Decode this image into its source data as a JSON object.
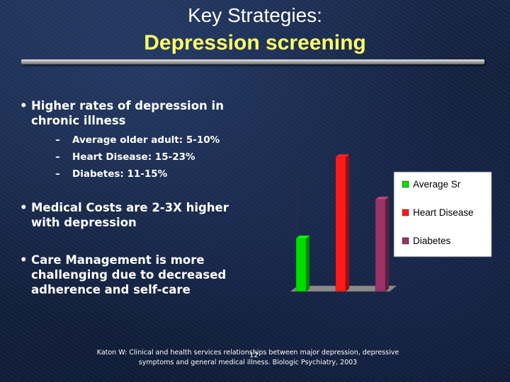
{
  "slide": {
    "title_line1": "Key Strategies:",
    "title_line2": "Depression screening",
    "bullets": [
      {
        "text": "Higher rates of depression in chronic illness"
      },
      {
        "text": "Medical Costs are 2-3X higher with depression"
      },
      {
        "text": "Care Management is more challenging due to decreased adherence and self-care"
      }
    ],
    "sub_bullets": [
      "Average older adult: 5-10%",
      "Heart Disease: 15-23%",
      "Diabetes: 11-15%"
    ],
    "citation_line1": "Katon W: Clinical and health services relationships between major depression, depressive",
    "citation_line2": "symptoms and general medical illness. Biologic Psychiatry, 2003",
    "slide_number": "12"
  },
  "chart_data": {
    "type": "bar",
    "categories": [
      "Average Sr",
      "Heart Disease",
      "Diabetes"
    ],
    "values": [
      7.5,
      19,
      13
    ],
    "colors": [
      "#00dd00",
      "#ff1a1a",
      "#993366"
    ],
    "ylim": [
      0,
      20
    ],
    "legend": {
      "placement": "right",
      "entries": [
        "Average Sr",
        "Heart Disease",
        "Diabetes"
      ]
    },
    "grid": false,
    "title": "",
    "xlabel": "",
    "ylabel": ""
  }
}
